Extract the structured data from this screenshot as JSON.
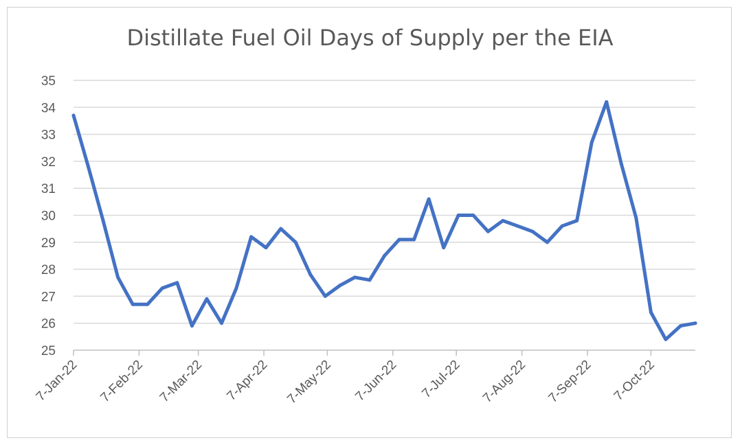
{
  "chart_data": {
    "type": "line",
    "title": "Distillate Fuel Oil Days of Supply per the EIA",
    "xlabel": "",
    "ylabel": "",
    "ylim": [
      25,
      35
    ],
    "yticks": [
      "25",
      "26",
      "27",
      "28",
      "29",
      "30",
      "31",
      "32",
      "33",
      "34",
      "35"
    ],
    "xticks": [
      "7-Jan-22",
      "7-Feb-22",
      "7-Mar-22",
      "7-Apr-22",
      "7-May-22",
      "7-Jun-22",
      "7-Jul-22",
      "7-Aug-22",
      "7-Sep-22",
      "7-Oct-22"
    ],
    "xlim": [
      "2022-01-07",
      "2022-10-28"
    ],
    "grid": true,
    "color": "#4472C4",
    "series": [
      {
        "x": [
          "2022-01-07",
          "2022-01-14",
          "2022-01-21",
          "2022-01-28",
          "2022-02-04",
          "2022-02-11",
          "2022-02-18",
          "2022-02-25",
          "2022-03-04",
          "2022-03-11",
          "2022-03-18",
          "2022-03-25",
          "2022-04-01",
          "2022-04-08",
          "2022-04-15",
          "2022-04-22",
          "2022-04-29",
          "2022-05-06",
          "2022-05-13",
          "2022-05-20",
          "2022-05-27",
          "2022-06-03",
          "2022-06-10",
          "2022-06-17",
          "2022-06-24",
          "2022-07-01",
          "2022-07-08",
          "2022-07-15",
          "2022-07-22",
          "2022-07-29",
          "2022-08-05",
          "2022-08-12",
          "2022-08-19",
          "2022-08-26",
          "2022-09-02",
          "2022-09-09",
          "2022-09-16",
          "2022-09-23",
          "2022-09-30",
          "2022-10-07",
          "2022-10-14",
          "2022-10-21",
          "2022-10-28"
        ],
        "values": [
          33.7,
          31.8,
          29.8,
          27.7,
          26.7,
          26.7,
          27.3,
          27.5,
          25.9,
          26.9,
          26.0,
          27.3,
          29.2,
          28.8,
          29.5,
          29.0,
          27.8,
          27.0,
          27.4,
          27.7,
          27.6,
          28.5,
          29.1,
          29.1,
          30.6,
          28.8,
          30.0,
          30.0,
          29.4,
          29.8,
          29.6,
          29.4,
          29.0,
          29.6,
          29.8,
          32.7,
          34.2,
          31.9,
          29.9,
          26.4,
          25.4,
          25.9,
          26.0
        ]
      }
    ]
  }
}
